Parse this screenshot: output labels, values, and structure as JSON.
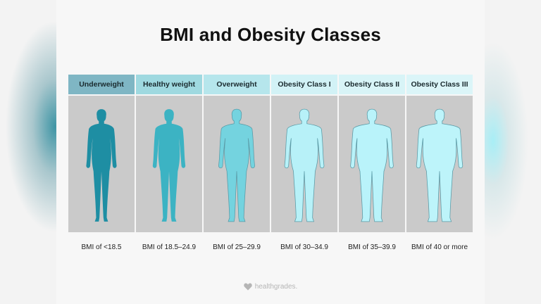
{
  "title": "BMI and Obesity Classes",
  "categories": [
    {
      "header": "Underweight",
      "range": "BMI of <18.5",
      "header_color": "#7fb6c4",
      "figure_color": "#1e8ea3",
      "width": 1.0
    },
    {
      "header": "Healthy weight",
      "range": "BMI of 18.5–24.9",
      "header_color": "#9fd9e0",
      "figure_color": "#3cb3c3",
      "width": 1.1
    },
    {
      "header": "Overweight",
      "range": "BMI of 25–29.9",
      "header_color": "#b6e6ec",
      "figure_color": "#74d3df",
      "width": 1.25
    },
    {
      "header": "Obesity Class I",
      "range": "BMI of 30–34.9",
      "header_color": "#d2f2f6",
      "figure_color": "#b7f1f8",
      "width": 1.4
    },
    {
      "header": "Obesity Class II",
      "range": "BMI of 35–39.9",
      "header_color": "#d8f4f7",
      "figure_color": "#b9f3fa",
      "width": 1.55
    },
    {
      "header": "Obesity Class III",
      "range": "BMI of 40 or more",
      "header_color": "#dbf5f8",
      "figure_color": "#bdf4fa",
      "width": 1.7
    }
  ],
  "logo": {
    "icon": "heart-icon",
    "text": "healthgrades."
  },
  "colors": {
    "panel_bg": "#cacaca",
    "outline": "#5a9aa6"
  }
}
